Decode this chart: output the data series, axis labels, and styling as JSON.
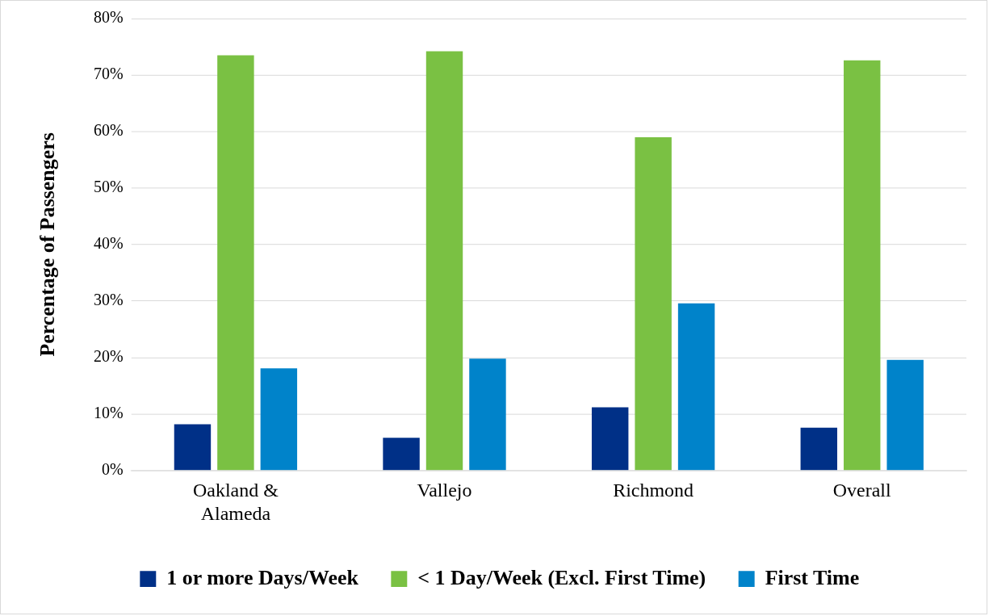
{
  "chart_data": {
    "type": "bar",
    "ylabel": "Percentage of Passengers",
    "categories": [
      "Oakland & Alameda",
      "Vallejo",
      "Richmond",
      "Overall"
    ],
    "series": [
      {
        "name": "1 or more Days/Week",
        "color": "#003087",
        "values": [
          8.2,
          5.8,
          11.2,
          7.6
        ]
      },
      {
        "name": "< 1 Day/Week (Excl. First Time)",
        "color": "#7ac143",
        "values": [
          73.5,
          74.2,
          59.0,
          72.6
        ]
      },
      {
        "name": "First Time",
        "color": "#0083ca",
        "values": [
          18.1,
          19.8,
          29.6,
          19.6
        ]
      }
    ],
    "ylim": [
      0,
      80
    ],
    "yticks": [
      {
        "value": 0,
        "label": "0%"
      },
      {
        "value": 10,
        "label": "10%"
      },
      {
        "value": 20,
        "label": "20%"
      },
      {
        "value": 30,
        "label": "30%"
      },
      {
        "value": 40,
        "label": "40%"
      },
      {
        "value": 50,
        "label": "50%"
      },
      {
        "value": 60,
        "label": "60%"
      },
      {
        "value": 70,
        "label": "70%"
      },
      {
        "value": 80,
        "label": "80%"
      }
    ],
    "grid": "y",
    "legend": "bottom"
  }
}
